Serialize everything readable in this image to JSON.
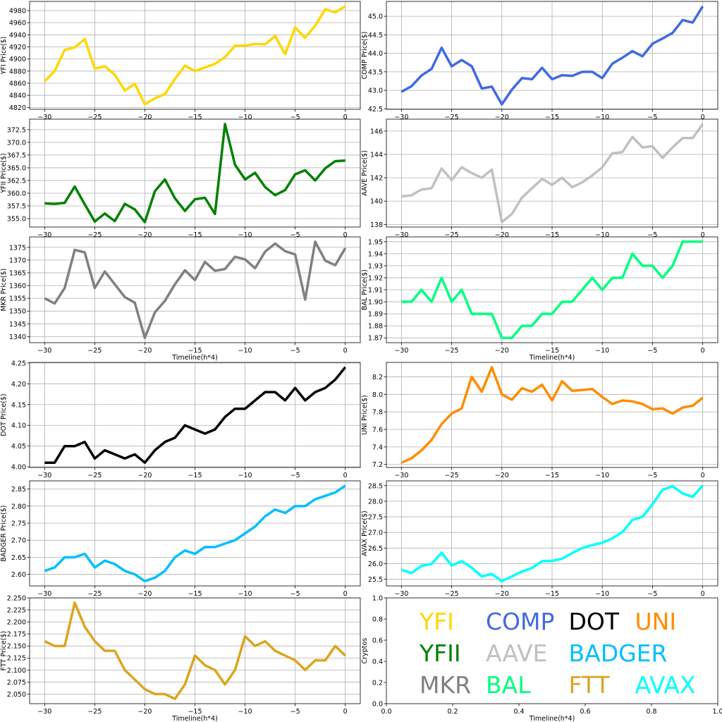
{
  "xlabel": "Timeline(h*4)",
  "chart_data": [
    {
      "type": "line",
      "name": "YFI",
      "ylabel": "YFI Price($)",
      "color": "#FFD700",
      "x_start": -30,
      "x_end": 0,
      "xticks": [
        -30,
        -25,
        -20,
        -15,
        -10,
        -5,
        0
      ],
      "xtick_labels": [
        "−30",
        "−25",
        "−20",
        "−15",
        "−10",
        "−5",
        "0"
      ],
      "yticks": [
        4820,
        4840,
        4860,
        4880,
        4900,
        4920,
        4940,
        4960,
        4980
      ],
      "ytick_labels": [
        "4820",
        "4840",
        "4860",
        "4880",
        "4900",
        "4920",
        "4940",
        "4960",
        "4980"
      ],
      "values": [
        4863,
        4880,
        4915,
        4919,
        4933,
        4884,
        4888,
        4874,
        4848,
        4859,
        4825,
        4835,
        4842,
        4867,
        4889,
        4880,
        4886,
        4892,
        4903,
        4922,
        4922,
        4925,
        4924,
        4938,
        4908,
        4952,
        4935,
        4955,
        4982,
        4977,
        4987
      ],
      "show_xlabel": false
    },
    {
      "type": "line",
      "name": "COMP",
      "ylabel": "COMP Price($)",
      "color": "#4169E1",
      "x_start": -30,
      "x_end": 0,
      "xticks": [
        -30,
        -25,
        -20,
        -15,
        -10,
        -5,
        0
      ],
      "xtick_labels": [
        "−30",
        "−25",
        "−20",
        "−15",
        "−10",
        "−5",
        "0"
      ],
      "yticks": [
        42.5,
        43.0,
        43.5,
        44.0,
        44.5,
        45.0
      ],
      "ytick_labels": [
        "42.5",
        "43.0",
        "43.5",
        "44.0",
        "44.5",
        "45.0"
      ],
      "values": [
        42.96,
        43.11,
        43.4,
        43.58,
        44.15,
        43.65,
        43.82,
        43.65,
        43.05,
        43.1,
        42.62,
        43.02,
        43.33,
        43.3,
        43.61,
        43.3,
        43.41,
        43.39,
        43.5,
        43.5,
        43.33,
        43.72,
        43.88,
        44.06,
        43.92,
        44.26,
        44.4,
        44.55,
        44.9,
        44.83,
        45.27
      ],
      "show_xlabel": false
    },
    {
      "type": "line",
      "name": "YFII",
      "ylabel": "YFII Price($)",
      "color": "#008000",
      "x_start": -30,
      "x_end": 0,
      "xticks": [
        -30,
        -25,
        -20,
        -15,
        -10,
        -5,
        0
      ],
      "xtick_labels": [
        "−30",
        "−25",
        "−20",
        "−15",
        "−10",
        "−5",
        "0"
      ],
      "yticks": [
        355.0,
        357.5,
        360.0,
        362.5,
        365.0,
        367.5,
        370.0,
        372.5
      ],
      "ytick_labels": [
        "355.0",
        "357.5",
        "360.0",
        "362.5",
        "365.0",
        "367.5",
        "370.0",
        "372.5"
      ],
      "values": [
        358.0,
        357.9,
        358.1,
        361.3,
        357.8,
        354.4,
        356.0,
        354.5,
        357.9,
        356.8,
        354.3,
        360.4,
        362.7,
        359.0,
        356.5,
        358.8,
        359.1,
        355.9,
        373.6,
        365.6,
        362.7,
        364.0,
        361.2,
        359.6,
        360.6,
        363.7,
        364.5,
        362.5,
        364.9,
        366.3,
        366.4
      ],
      "show_xlabel": false
    },
    {
      "type": "line",
      "name": "AAVE",
      "ylabel": "AAVE Price($)",
      "color": "#C0C0C0",
      "x_start": -30,
      "x_end": 0,
      "xticks": [
        -30,
        -25,
        -20,
        -15,
        -10,
        -5,
        0
      ],
      "xtick_labels": [
        "−30",
        "−25",
        "−20",
        "−15",
        "−10",
        "−5",
        "0"
      ],
      "yticks": [
        138,
        140,
        142,
        144,
        146
      ],
      "ytick_labels": [
        "138",
        "140",
        "142",
        "144",
        "146"
      ],
      "values": [
        140.4,
        140.5,
        141.0,
        141.1,
        142.8,
        141.8,
        142.9,
        142.4,
        142.0,
        142.7,
        138.2,
        138.9,
        140.3,
        141.1,
        141.9,
        141.4,
        142.0,
        141.2,
        141.6,
        142.2,
        142.9,
        144.1,
        144.2,
        145.5,
        144.6,
        144.7,
        143.7,
        144.6,
        145.4,
        145.4,
        146.6
      ],
      "show_xlabel": false
    },
    {
      "type": "line",
      "name": "MKR",
      "ylabel": "MKR Price($)",
      "color": "#808080",
      "x_start": -30,
      "x_end": 0,
      "xticks": [
        -30,
        -25,
        -20,
        -15,
        -10,
        -5,
        0
      ],
      "xtick_labels": [
        "−30",
        "−25",
        "−20",
        "−15",
        "−10",
        "−5",
        "0"
      ],
      "yticks": [
        1340,
        1345,
        1350,
        1355,
        1360,
        1365,
        1370,
        1375
      ],
      "ytick_labels": [
        "1340",
        "1345",
        "1350",
        "1355",
        "1360",
        "1365",
        "1370",
        "1375"
      ],
      "values": [
        1355,
        1353,
        1359,
        1374,
        1373,
        1359,
        1365.5,
        1360.5,
        1355.5,
        1353.3,
        1339.5,
        1349.5,
        1354,
        1360.5,
        1366,
        1362.2,
        1369.3,
        1365.8,
        1366.5,
        1371.3,
        1370.3,
        1366.8,
        1373.3,
        1376.5,
        1373.5,
        1372.2,
        1354.5,
        1377.2,
        1369.8,
        1368,
        1374.7
      ],
      "show_xlabel": true
    },
    {
      "type": "line",
      "name": "BAL",
      "ylabel": "BAL Price($)",
      "color": "#00FF7F",
      "x_start": -30,
      "x_end": 0,
      "xticks": [
        -30,
        -25,
        -20,
        -15,
        -10,
        -5,
        0
      ],
      "xtick_labels": [
        "−30",
        "−25",
        "−20",
        "−15",
        "−10",
        "−5",
        "0"
      ],
      "yticks": [
        1.87,
        1.88,
        1.89,
        1.9,
        1.91,
        1.92,
        1.93,
        1.94,
        1.95
      ],
      "ytick_labels": [
        "1.87",
        "1.88",
        "1.89",
        "1.90",
        "1.91",
        "1.92",
        "1.93",
        "1.94",
        "1.95"
      ],
      "values": [
        1.9,
        1.9,
        1.91,
        1.9,
        1.92,
        1.9,
        1.91,
        1.89,
        1.89,
        1.89,
        1.87,
        1.87,
        1.88,
        1.88,
        1.89,
        1.89,
        1.9,
        1.9,
        1.91,
        1.92,
        1.91,
        1.92,
        1.92,
        1.94,
        1.93,
        1.93,
        1.92,
        1.93,
        1.95,
        1.95,
        1.95
      ],
      "show_xlabel": true
    },
    {
      "type": "line",
      "name": "DOT",
      "ylabel": "DOT Price($)",
      "color": "#000000",
      "x_start": -30,
      "x_end": 0,
      "xticks": [
        -30,
        -25,
        -20,
        -15,
        -10,
        -5,
        0
      ],
      "xtick_labels": [
        "−30",
        "−25",
        "−20",
        "−15",
        "−10",
        "−5",
        "0"
      ],
      "yticks": [
        4.0,
        4.05,
        4.1,
        4.15,
        4.2,
        4.25
      ],
      "ytick_labels": [
        "4.00",
        "4.05",
        "4.10",
        "4.15",
        "4.20",
        "4.25"
      ],
      "values": [
        4.01,
        4.01,
        4.05,
        4.05,
        4.06,
        4.02,
        4.04,
        4.03,
        4.02,
        4.03,
        4.01,
        4.04,
        4.06,
        4.07,
        4.1,
        4.09,
        4.08,
        4.09,
        4.12,
        4.14,
        4.14,
        4.16,
        4.18,
        4.18,
        4.16,
        4.19,
        4.16,
        4.18,
        4.19,
        4.21,
        4.24
      ],
      "show_xlabel": false
    },
    {
      "type": "line",
      "name": "UNI",
      "ylabel": "UNI Price($)",
      "color": "#FF8C00",
      "x_start": -30,
      "x_end": 0,
      "xticks": [
        -30,
        -25,
        -20,
        -15,
        -10,
        -5,
        0
      ],
      "xtick_labels": [
        "−30",
        "−25",
        "−20",
        "−15",
        "−10",
        "−5",
        "0"
      ],
      "yticks": [
        7.2,
        7.4,
        7.6,
        7.8,
        8.0,
        8.2
      ],
      "ytick_labels": [
        "7.2",
        "7.4",
        "7.6",
        "7.8",
        "8.0",
        "8.2"
      ],
      "values": [
        7.22,
        7.27,
        7.36,
        7.48,
        7.66,
        7.78,
        7.84,
        8.2,
        8.03,
        8.31,
        8.0,
        7.94,
        8.07,
        8.03,
        8.11,
        7.93,
        8.15,
        8.04,
        8.05,
        8.06,
        7.97,
        7.89,
        7.93,
        7.92,
        7.89,
        7.83,
        7.84,
        7.78,
        7.85,
        7.87,
        7.96
      ],
      "show_xlabel": false
    },
    {
      "type": "line",
      "name": "BADGER",
      "ylabel": "BADGER Price($)",
      "color": "#00BFFF",
      "x_start": -30,
      "x_end": 0,
      "xticks": [
        -30,
        -25,
        -20,
        -15,
        -10,
        -5,
        0
      ],
      "xtick_labels": [
        "−30",
        "−25",
        "−20",
        "−15",
        "−10",
        "−5",
        "0"
      ],
      "yticks": [
        2.6,
        2.65,
        2.7,
        2.75,
        2.8,
        2.85
      ],
      "ytick_labels": [
        "2.60",
        "2.65",
        "2.70",
        "2.75",
        "2.80",
        "2.85"
      ],
      "values": [
        2.61,
        2.62,
        2.65,
        2.65,
        2.66,
        2.62,
        2.64,
        2.63,
        2.61,
        2.6,
        2.58,
        2.59,
        2.61,
        2.65,
        2.67,
        2.66,
        2.68,
        2.68,
        2.69,
        2.7,
        2.72,
        2.74,
        2.77,
        2.79,
        2.78,
        2.8,
        2.8,
        2.82,
        2.83,
        2.84,
        2.86
      ],
      "show_xlabel": false
    },
    {
      "type": "line",
      "name": "AVAX",
      "ylabel": "AVAX Price($)",
      "color": "#00FFFF",
      "x_start": -30,
      "x_end": 0,
      "xticks": [
        -30,
        -25,
        -20,
        -15,
        -10,
        -5,
        0
      ],
      "xtick_labels": [
        "−30",
        "−25",
        "−20",
        "−15",
        "−10",
        "−5",
        "0"
      ],
      "yticks": [
        25.5,
        26.0,
        26.5,
        27.0,
        27.5,
        28.0,
        28.5
      ],
      "ytick_labels": [
        "25.5",
        "26.0",
        "26.5",
        "27.0",
        "27.5",
        "28.0",
        "28.5"
      ],
      "values": [
        25.8,
        25.7,
        25.93,
        25.99,
        26.35,
        25.94,
        26.08,
        25.87,
        25.59,
        25.67,
        25.44,
        25.59,
        25.75,
        25.86,
        26.08,
        26.09,
        26.16,
        26.34,
        26.5,
        26.6,
        26.67,
        26.81,
        27.01,
        27.4,
        27.5,
        27.9,
        28.37,
        28.48,
        28.25,
        28.14,
        28.5
      ],
      "show_xlabel": false
    },
    {
      "type": "line",
      "name": "FTT",
      "ylabel": "FTT Price($)",
      "color": "#DAA520",
      "x_start": -30,
      "x_end": 0,
      "xticks": [
        -30,
        -25,
        -20,
        -15,
        -10,
        -5,
        0
      ],
      "xtick_labels": [
        "−30",
        "−25",
        "−20",
        "−15",
        "−10",
        "−5",
        "0"
      ],
      "yticks": [
        2.05,
        2.075,
        2.1,
        2.125,
        2.15,
        2.175,
        2.2,
        2.225,
        2.25
      ],
      "ytick_labels": [
        "2.050",
        "2.075",
        "2.100",
        "2.125",
        "2.150",
        "2.175",
        "2.200",
        "2.225",
        "2.250"
      ],
      "values": [
        2.16,
        2.15,
        2.15,
        2.24,
        2.19,
        2.16,
        2.14,
        2.14,
        2.1,
        2.08,
        2.06,
        2.05,
        2.05,
        2.04,
        2.07,
        2.13,
        2.11,
        2.1,
        2.07,
        2.1,
        2.17,
        2.15,
        2.16,
        2.14,
        2.13,
        2.12,
        2.1,
        2.12,
        2.12,
        2.15,
        2.13
      ],
      "show_xlabel": true
    },
    {
      "type": "legend",
      "name": "Cryptos",
      "ylabel": "Cryptos",
      "xlim": [
        0,
        1
      ],
      "ylim": [
        0,
        1
      ],
      "xticks": [
        0,
        0.2,
        0.4,
        0.6,
        0.8,
        1.0
      ],
      "xtick_labels": [
        "0.0",
        "0.2",
        "0.4",
        "0.6",
        "0.8",
        "1.0"
      ],
      "yticks": [
        0,
        0.2,
        0.4,
        0.6,
        0.8,
        1.0
      ],
      "ytick_labels": [
        "0.0",
        "0.2",
        "0.4",
        "0.6",
        "0.8",
        "1.0"
      ],
      "labels": [
        {
          "text": "YFI",
          "color": "#FFD700"
        },
        {
          "text": "COMP",
          "color": "#4169E1"
        },
        {
          "text": "DOT",
          "color": "#000000"
        },
        {
          "text": "UNI",
          "color": "#FF8C00"
        },
        {
          "text": "YFII",
          "color": "#008000"
        },
        {
          "text": "AAVE",
          "color": "#C0C0C0"
        },
        {
          "text": "BADGER",
          "color": "#00BFFF"
        },
        {
          "text": "MKR",
          "color": "#808080"
        },
        {
          "text": "BAL",
          "color": "#00FF7F"
        },
        {
          "text": "FTT",
          "color": "#DAA520"
        },
        {
          "text": "AVAX",
          "color": "#00FFFF"
        }
      ],
      "show_xlabel": true
    }
  ]
}
